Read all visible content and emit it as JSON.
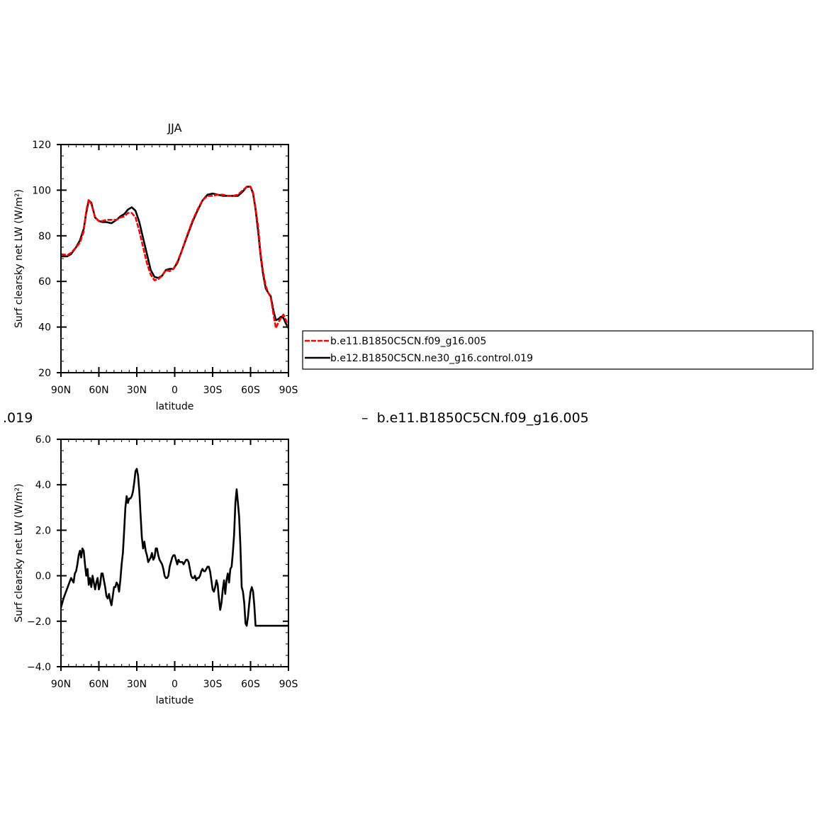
{
  "figure": {
    "left_fragment": ".019",
    "right_fragment": "–  b.e11.B1850C5CN.f09_g16.005"
  },
  "chart_data": [
    {
      "type": "line",
      "title": "JJA",
      "xlabel": "latitude",
      "ylabel": "Surf clearsky net LW (W/m²)",
      "xlim": [
        -90,
        90
      ],
      "ylim": [
        20,
        120
      ],
      "xticks": [
        -90,
        -60,
        -30,
        0,
        30,
        60,
        90
      ],
      "xtick_labels": [
        "90N",
        "60N",
        "30N",
        "0",
        "30S",
        "60S",
        "90S"
      ],
      "yticks": [
        20,
        40,
        60,
        80,
        100,
        120
      ],
      "ytick_labels": [
        "20",
        "40",
        "60",
        "80",
        "100",
        "120"
      ],
      "legend": {
        "placement": "right",
        "entries": [
          "b.e11.B1850C5CN.f09_g16.005",
          "b.e12.B1850C5CN.ne30_g16.control.019"
        ]
      },
      "series": [
        {
          "name": "b.e11.B1850C5CN.f09_g16.005",
          "color": "#ff0000",
          "dash": true,
          "x": [
            -90,
            -85,
            -82,
            -78,
            -75,
            -72,
            -70,
            -68,
            -66,
            -63,
            -60,
            -57,
            -54,
            -50,
            -46,
            -43,
            -40,
            -37,
            -34,
            -31,
            -28,
            -25,
            -22,
            -19,
            -16,
            -13,
            -10,
            -7,
            -4,
            -1,
            2,
            6,
            10,
            14,
            18,
            22,
            26,
            30,
            34,
            38,
            42,
            46,
            50,
            54,
            57,
            60,
            62,
            64,
            66,
            68,
            70,
            72,
            74,
            76,
            78,
            80,
            82,
            84,
            86,
            88,
            90
          ],
          "y": [
            72,
            71.5,
            72.5,
            75,
            77,
            82,
            91,
            96,
            94,
            88,
            86.5,
            86.5,
            87,
            87,
            87,
            88,
            88.5,
            90,
            90,
            88,
            82,
            75,
            68,
            63,
            60.5,
            61,
            62.5,
            65,
            64.5,
            65.5,
            68.5,
            74,
            80.5,
            86.5,
            91.5,
            95.5,
            97.5,
            97.5,
            98,
            98,
            97.5,
            97.5,
            98,
            100,
            101.5,
            101.5,
            99,
            92,
            84,
            72,
            64,
            58,
            55,
            53,
            46,
            39.5,
            42,
            44,
            45.5,
            43,
            40
          ]
        },
        {
          "name": "b.e12.B1850C5CN.ne30_g16.control.019",
          "color": "#000000",
          "dash": false,
          "x": [
            -90,
            -85,
            -82,
            -78,
            -75,
            -72,
            -70,
            -68,
            -66,
            -63,
            -60,
            -57,
            -54,
            -50,
            -46,
            -43,
            -40,
            -37,
            -34,
            -31,
            -28,
            -25,
            -22,
            -19,
            -16,
            -13,
            -10,
            -7,
            -4,
            -1,
            2,
            6,
            10,
            14,
            18,
            22,
            26,
            30,
            34,
            38,
            42,
            46,
            50,
            54,
            57,
            60,
            62,
            64,
            66,
            68,
            70,
            72,
            74,
            76,
            78,
            80,
            82,
            84,
            86,
            88,
            90
          ],
          "y": [
            71,
            71,
            72,
            75,
            78,
            83,
            90,
            95.5,
            94.5,
            88,
            86.5,
            86,
            86,
            85.5,
            87,
            88.5,
            89.5,
            91.5,
            92.5,
            91,
            86,
            79,
            72,
            65,
            62,
            61.5,
            62.5,
            65,
            65.5,
            65.5,
            68,
            74,
            80,
            86,
            91,
            95.5,
            98,
            98.5,
            98,
            97.5,
            97.5,
            97.5,
            97.5,
            99.5,
            101.5,
            101.5,
            98.5,
            91.5,
            82,
            71,
            63,
            57,
            55,
            53.5,
            47.5,
            43,
            43.5,
            44.5,
            44,
            41.5,
            39.5
          ]
        }
      ]
    },
    {
      "type": "line",
      "title": "",
      "xlabel": "latitude",
      "ylabel": "Surf clearsky net LW (W/m²)",
      "xlim": [
        -90,
        90
      ],
      "ylim": [
        -4,
        6
      ],
      "xticks": [
        -90,
        -60,
        -30,
        0,
        30,
        60,
        90
      ],
      "xtick_labels": [
        "90N",
        "60N",
        "30N",
        "0",
        "30S",
        "60S",
        "90S"
      ],
      "yticks": [
        -4,
        -2,
        0,
        2,
        4,
        6
      ],
      "ytick_labels": [
        "−4.0",
        "−2.0",
        "0.0",
        "2.0",
        "4.0",
        "6.0"
      ],
      "series": [
        {
          "color": "#000000",
          "x": [
            -90,
            -88,
            -86,
            -84,
            -82,
            -80,
            -79,
            -78,
            -77,
            -76,
            -75,
            -74,
            -73,
            -72,
            -71,
            -70,
            -69,
            -68,
            -67,
            -66,
            -65,
            -64,
            -63,
            -62,
            -61,
            -60,
            -59,
            -58,
            -57,
            -56,
            -55,
            -54,
            -53,
            -52,
            -51,
            -50,
            -49,
            -48,
            -47,
            -46,
            -45,
            -44,
            -43,
            -42,
            -41,
            -40,
            -39,
            -38,
            -37,
            -36,
            -35,
            -34,
            -33,
            -32,
            -31,
            -30,
            -29,
            -28,
            -27,
            -26,
            -25,
            -24,
            -23,
            -22,
            -21,
            -20,
            -19,
            -18,
            -17,
            -16,
            -15,
            -14,
            -13,
            -12,
            -11,
            -10,
            -9,
            -8,
            -7,
            -6,
            -5,
            -4,
            -3,
            -2,
            -1,
            0,
            1,
            2,
            3,
            4,
            5,
            6,
            7,
            8,
            9,
            10,
            11,
            12,
            13,
            14,
            15,
            16,
            17,
            18,
            19,
            20,
            21,
            22,
            23,
            24,
            25,
            26,
            27,
            28,
            29,
            30,
            31,
            32,
            33,
            34,
            35,
            36,
            37,
            38,
            39,
            40,
            41,
            42,
            43,
            44,
            45,
            46,
            47,
            48,
            49,
            50,
            51,
            52,
            53,
            54,
            55,
            56,
            57,
            58,
            59,
            60,
            61,
            62,
            63,
            64,
            65,
            66,
            67,
            68,
            69,
            70,
            71,
            72,
            73,
            74,
            75,
            76,
            77,
            78,
            79,
            80,
            81,
            82,
            83,
            84,
            85,
            86,
            87,
            88,
            89,
            90
          ],
          "y": [
            -1.4,
            -1.0,
            -0.7,
            -0.4,
            -0.1,
            -0.3,
            0.1,
            0.2,
            0.5,
            0.9,
            1.1,
            0.8,
            1.2,
            1.1,
            0.5,
            0.0,
            0.3,
            -0.4,
            -0.1,
            -0.5,
            0.0,
            -0.3,
            -0.6,
            -0.3,
            -0.1,
            -0.6,
            -0.4,
            0.1,
            0.1,
            -0.2,
            -0.5,
            -0.9,
            -1.0,
            -0.8,
            -1.1,
            -1.3,
            -0.9,
            -0.5,
            -0.5,
            -0.3,
            -0.4,
            -0.7,
            -0.2,
            0.5,
            1.0,
            2.0,
            3.0,
            3.5,
            3.2,
            3.4,
            3.4,
            3.5,
            3.7,
            4.1,
            4.6,
            4.7,
            4.4,
            3.7,
            2.7,
            1.7,
            1.2,
            1.5,
            1.1,
            0.9,
            0.6,
            0.7,
            0.8,
            1.0,
            0.7,
            0.8,
            1.2,
            1.2,
            0.9,
            0.7,
            0.6,
            0.5,
            0.3,
            0.0,
            -0.1,
            -0.1,
            0.0,
            0.4,
            0.6,
            0.8,
            0.9,
            0.9,
            0.7,
            0.5,
            0.7,
            0.6,
            0.6,
            0.6,
            0.5,
            0.6,
            0.7,
            0.7,
            0.6,
            0.3,
            0.0,
            -0.1,
            -0.1,
            0.0,
            -0.2,
            -0.1,
            -0.1,
            0.0,
            0.2,
            0.3,
            0.2,
            0.2,
            0.3,
            0.4,
            0.4,
            0.2,
            -0.2,
            -0.6,
            -0.7,
            -0.5,
            -0.2,
            -0.4,
            -1.0,
            -1.5,
            -1.2,
            -0.6,
            -0.2,
            -0.8,
            -0.2,
            0.1,
            -0.3,
            0.3,
            0.4,
            1.0,
            1.8,
            3.2,
            3.8,
            3.2,
            2.6,
            1.3,
            -0.5,
            -0.7,
            -1.2,
            -2.1,
            -2.2,
            -1.8,
            -1.2,
            -0.7,
            -0.5,
            -0.7,
            -1.3,
            -2.2,
            -2.2,
            -2.2,
            -2.2,
            -2.2,
            -2.2,
            -2.2,
            -2.2,
            -2.2,
            -2.2,
            -2.2,
            -2.2,
            -2.2,
            -2.2,
            -2.2,
            -2.2,
            -2.2,
            -2.2,
            -2.2,
            -2.2,
            -2.2,
            -2.2,
            -2.2,
            -2.2,
            -2.2,
            -2.2,
            -2.2
          ]
        }
      ]
    }
  ]
}
